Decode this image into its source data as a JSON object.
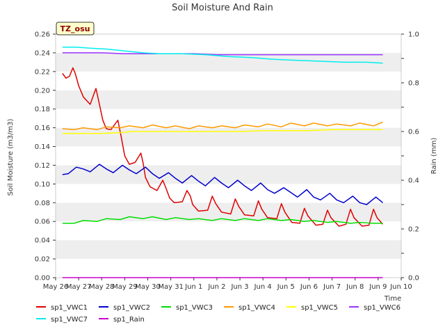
{
  "chart_data": {
    "type": "line",
    "title": "Soil Moisture And Rain",
    "xlabel": "Time",
    "ylabel": "Soil Moisture (m3/m3)",
    "y2label": "Rain (mm)",
    "badge": "TZ_osu",
    "x_ticks": [
      "May 26",
      "May 27",
      "May 28",
      "May 29",
      "May 30",
      "May 31",
      "Jun 1",
      "Jun 2",
      "Jun 3",
      "Jun 4",
      "Jun 5",
      "Jun 6",
      "Jun 7",
      "Jun 8",
      "Jun 9",
      "Jun 10"
    ],
    "xlim": [
      0,
      15
    ],
    "ylim": [
      0,
      0.26
    ],
    "y_ticks": [
      "0.00",
      "0.02",
      "0.04",
      "0.06",
      "0.08",
      "0.10",
      "0.12",
      "0.14",
      "0.16",
      "0.18",
      "0.20",
      "0.22",
      "0.24",
      "0.26"
    ],
    "y2lim": [
      0,
      1.0
    ],
    "y2_ticks": [
      "0.0",
      "0.2",
      "0.4",
      "0.6",
      "0.8",
      "1.0"
    ],
    "grid": "horizontal bands",
    "legend_placement": "bottom",
    "series": [
      {
        "name": "sp1_VWC1",
        "color": "#e00000",
        "axis": "left",
        "x": [
          0.3,
          0.45,
          0.6,
          0.75,
          0.85,
          1.0,
          1.2,
          1.5,
          1.75,
          1.9,
          2.05,
          2.2,
          2.4,
          2.7,
          2.85,
          3.0,
          3.2,
          3.45,
          3.7,
          3.8,
          3.9,
          4.1,
          4.4,
          4.65,
          4.8,
          4.95,
          5.15,
          5.5,
          5.7,
          5.85,
          5.95,
          6.2,
          6.6,
          6.8,
          6.95,
          7.2,
          7.6,
          7.8,
          7.95,
          8.2,
          8.6,
          8.8,
          8.95,
          9.2,
          9.6,
          9.8,
          9.95,
          10.25,
          10.6,
          10.8,
          10.95,
          11.3,
          11.6,
          11.8,
          11.95,
          12.3,
          12.6,
          12.8,
          12.95,
          13.3,
          13.6,
          13.8,
          13.95,
          14.2
        ],
        "y": [
          0.218,
          0.213,
          0.215,
          0.224,
          0.218,
          0.205,
          0.193,
          0.185,
          0.202,
          0.185,
          0.168,
          0.159,
          0.158,
          0.168,
          0.15,
          0.13,
          0.121,
          0.123,
          0.133,
          0.122,
          0.107,
          0.097,
          0.093,
          0.104,
          0.095,
          0.085,
          0.08,
          0.081,
          0.093,
          0.087,
          0.078,
          0.071,
          0.072,
          0.087,
          0.079,
          0.07,
          0.068,
          0.084,
          0.076,
          0.067,
          0.066,
          0.082,
          0.073,
          0.064,
          0.063,
          0.079,
          0.07,
          0.059,
          0.058,
          0.074,
          0.066,
          0.056,
          0.057,
          0.072,
          0.064,
          0.055,
          0.057,
          0.073,
          0.064,
          0.055,
          0.056,
          0.073,
          0.064,
          0.057
        ]
      },
      {
        "name": "sp1_VWC2",
        "color": "#0000cc",
        "axis": "left",
        "x": [
          0.3,
          0.55,
          0.9,
          1.2,
          1.5,
          1.9,
          2.2,
          2.5,
          2.9,
          3.2,
          3.5,
          3.9,
          4.2,
          4.5,
          4.9,
          5.2,
          5.5,
          5.9,
          6.2,
          6.5,
          6.9,
          7.2,
          7.5,
          7.9,
          8.2,
          8.5,
          8.9,
          9.2,
          9.5,
          9.9,
          10.2,
          10.5,
          10.9,
          11.2,
          11.5,
          11.9,
          12.2,
          12.5,
          12.9,
          13.2,
          13.5,
          13.9,
          14.2
        ],
        "y": [
          0.11,
          0.111,
          0.118,
          0.116,
          0.113,
          0.121,
          0.116,
          0.112,
          0.12,
          0.115,
          0.111,
          0.118,
          0.111,
          0.106,
          0.112,
          0.106,
          0.101,
          0.109,
          0.103,
          0.098,
          0.107,
          0.101,
          0.096,
          0.104,
          0.098,
          0.093,
          0.101,
          0.094,
          0.09,
          0.096,
          0.091,
          0.086,
          0.094,
          0.086,
          0.083,
          0.09,
          0.083,
          0.08,
          0.087,
          0.08,
          0.078,
          0.086,
          0.08
        ]
      },
      {
        "name": "sp1_VWC3",
        "color": "#00dd00",
        "axis": "left",
        "x": [
          0.3,
          0.8,
          1.2,
          1.8,
          2.2,
          2.8,
          3.2,
          3.8,
          4.2,
          4.8,
          5.2,
          5.8,
          6.2,
          6.8,
          7.2,
          7.8,
          8.2,
          8.8,
          9.2,
          9.8,
          10.2,
          10.8,
          11.2,
          11.8,
          12.2,
          12.8,
          13.2,
          13.8,
          14.2
        ],
        "y": [
          0.058,
          0.058,
          0.061,
          0.06,
          0.063,
          0.062,
          0.065,
          0.063,
          0.065,
          0.062,
          0.064,
          0.062,
          0.063,
          0.061,
          0.063,
          0.061,
          0.063,
          0.061,
          0.063,
          0.061,
          0.062,
          0.06,
          0.061,
          0.059,
          0.06,
          0.058,
          0.059,
          0.058,
          0.058
        ]
      },
      {
        "name": "sp1_VWC4",
        "color": "#ff9900",
        "axis": "left",
        "x": [
          0.3,
          0.8,
          1.2,
          1.8,
          2.2,
          2.8,
          3.2,
          3.8,
          4.2,
          4.8,
          5.2,
          5.8,
          6.2,
          6.8,
          7.2,
          7.8,
          8.2,
          8.8,
          9.2,
          9.8,
          10.2,
          10.8,
          11.2,
          11.8,
          12.2,
          12.8,
          13.2,
          13.8,
          14.2
        ],
        "y": [
          0.159,
          0.158,
          0.16,
          0.158,
          0.161,
          0.16,
          0.162,
          0.16,
          0.163,
          0.16,
          0.162,
          0.159,
          0.162,
          0.16,
          0.162,
          0.16,
          0.163,
          0.161,
          0.164,
          0.161,
          0.165,
          0.162,
          0.165,
          0.162,
          0.164,
          0.162,
          0.165,
          0.162,
          0.166
        ]
      },
      {
        "name": "sp1_VWC5",
        "color": "#ffff00",
        "axis": "left",
        "x": [
          0.3,
          1.0,
          2.0,
          3.0,
          3.3,
          4.0,
          5.0,
          6.0,
          7.0,
          8.0,
          9.0,
          10.0,
          11.0,
          12.0,
          13.0,
          14.2
        ],
        "y": [
          0.154,
          0.154,
          0.154,
          0.155,
          0.156,
          0.156,
          0.156,
          0.156,
          0.156,
          0.156,
          0.157,
          0.157,
          0.157,
          0.158,
          0.158,
          0.158
        ]
      },
      {
        "name": "sp1_VWC6",
        "color": "#9933ff",
        "axis": "left",
        "x": [
          0.3,
          1.0,
          2.0,
          3.0,
          4.0,
          5.0,
          6.0,
          7.0,
          8.0,
          9.0,
          10.0,
          11.0,
          12.0,
          13.0,
          14.2
        ],
        "y": [
          0.24,
          0.24,
          0.24,
          0.239,
          0.239,
          0.239,
          0.239,
          0.238,
          0.238,
          0.238,
          0.238,
          0.238,
          0.238,
          0.238,
          0.238
        ]
      },
      {
        "name": "sp1_VWC7",
        "color": "#00eeee",
        "axis": "left",
        "x": [
          0.3,
          0.9,
          1.5,
          2.2,
          3.0,
          3.8,
          4.5,
          5.5,
          6.5,
          7.5,
          8.5,
          9.5,
          10.5,
          11.5,
          12.5,
          13.5,
          14.2
        ],
        "y": [
          0.246,
          0.246,
          0.245,
          0.244,
          0.242,
          0.24,
          0.239,
          0.239,
          0.238,
          0.236,
          0.235,
          0.233,
          0.232,
          0.231,
          0.23,
          0.23,
          0.229
        ]
      },
      {
        "name": "sp1_Rain",
        "color": "#cc00cc",
        "axis": "right",
        "x": [
          0.3,
          14.2
        ],
        "y": [
          0.0,
          0.0
        ]
      }
    ]
  }
}
